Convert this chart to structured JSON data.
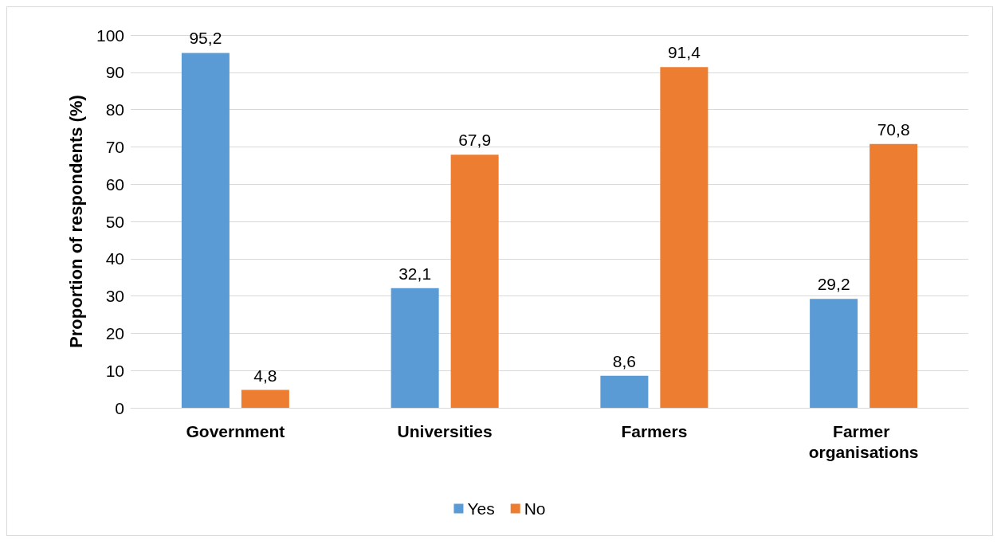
{
  "chart_data": {
    "type": "bar",
    "ylabel": "Proportion of respondents (%)",
    "categories": [
      "Government",
      "Universities",
      "Farmers",
      "Farmer organisations"
    ],
    "series": [
      {
        "name": "Yes",
        "color": "#5b9bd5",
        "values": [
          95.2,
          32.1,
          8.6,
          29.2
        ],
        "value_labels": [
          "95,2",
          "32,1",
          "8,6",
          "29,2"
        ]
      },
      {
        "name": "No",
        "color": "#ed7d31",
        "values": [
          4.8,
          67.9,
          91.4,
          70.8
        ],
        "value_labels": [
          "4,8",
          "67,9",
          "91,4",
          "70,8"
        ]
      }
    ],
    "ylim": [
      0,
      100
    ],
    "yticks": [
      0,
      10,
      20,
      30,
      40,
      50,
      60,
      70,
      80,
      90,
      100
    ],
    "grid": "y",
    "legend": "bottom"
  }
}
